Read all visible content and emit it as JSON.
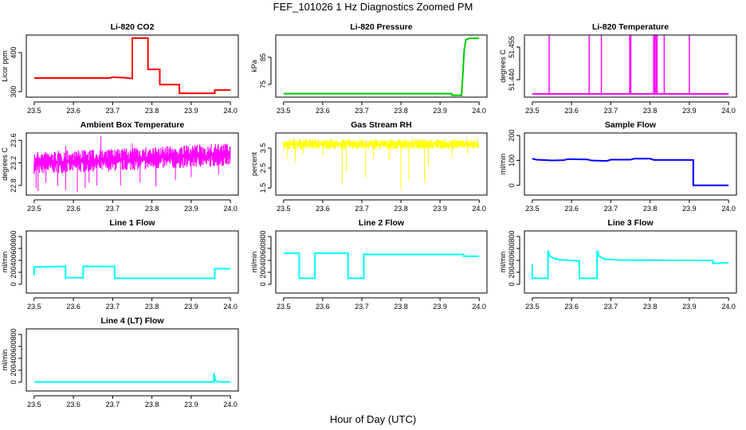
{
  "chart_data": {
    "type": "line",
    "title": "FEF_101026  1 Hz Diagnostics Zoomed PM",
    "xlabel": "Hour of Day (UTC)",
    "xlim": [
      23.48,
      24.02
    ],
    "xticks": [
      "23.5",
      "23.6",
      "23.7",
      "23.8",
      "23.9",
      "24.0"
    ],
    "panels": [
      {
        "title": "Li-820 CO2",
        "ylabel": "Licor ppm",
        "ylim": [
          286,
          445
        ],
        "yticks": [
          300,
          400
        ],
        "ytick_labels": [
          "300",
          "400"
        ],
        "color": "#ff0000",
        "lines": [
          [
            [
              23.5,
              335
            ],
            [
              23.6,
              335
            ],
            [
              23.69,
              335
            ],
            [
              23.7,
              337
            ],
            [
              23.73,
              336
            ],
            [
              23.745,
              334
            ],
            [
              23.75,
              334
            ],
            [
              23.75,
              437
            ],
            [
              23.79,
              437
            ],
            [
              23.79,
              357
            ],
            [
              23.82,
              357
            ],
            [
              23.82,
              318
            ],
            [
              23.87,
              318
            ],
            [
              23.87,
              296
            ],
            [
              23.96,
              296
            ],
            [
              23.96,
              304
            ],
            [
              24.0,
              304
            ]
          ]
        ]
      },
      {
        "title": "Li-820 Pressure",
        "ylabel": "kPa",
        "ylim": [
          70.3,
          93.2
        ],
        "yticks": [
          75,
          85
        ],
        "ytick_labels": [
          "75",
          "85"
        ],
        "color": "#00cc00",
        "lines": [
          [
            [
              23.5,
              71.6
            ],
            [
              23.93,
              71.6
            ],
            [
              23.93,
              71.0
            ],
            [
              23.955,
              71.0
            ],
            [
              23.958,
              78
            ],
            [
              23.962,
              88
            ],
            [
              23.966,
              91.5
            ],
            [
              23.975,
              92
            ],
            [
              24.0,
              92
            ]
          ]
        ]
      },
      {
        "title": "Li-820 Temperature",
        "ylabel": "degrees C",
        "ylim": [
          51.432,
          51.4605
        ],
        "yticks": [
          51.44,
          51.455
        ],
        "ytick_labels": [
          "51.440",
          "51.455"
        ],
        "color": "#ff00ff",
        "lines": [
          [
            [
              23.5,
              51.4335
            ],
            [
              24.0,
              51.4335
            ]
          ]
        ],
        "spikes": {
          "x": [
            23.543,
            23.645,
            23.676,
            23.748,
            23.751,
            23.809,
            23.812,
            23.815,
            23.818,
            23.836,
            23.9
          ],
          "base": 51.4335,
          "top": 51.4605
        }
      },
      {
        "title": "Ambient Box Temperature",
        "ylabel": "degrees C",
        "ylim": [
          22.63,
          23.73
        ],
        "yticks": [
          22.8,
          23.2,
          23.6
        ],
        "ytick_labels": [
          "22.8",
          "23.2",
          "23.6"
        ],
        "color": "#ff00ff",
        "band": {
          "x": [
            23.5,
            23.7,
            23.85,
            24.0
          ],
          "lo": [
            23.0,
            23.05,
            23.1,
            23.15
          ],
          "hi": [
            23.4,
            23.45,
            23.5,
            23.55
          ]
        },
        "spikes_down": {
          "x": [
            23.505,
            23.51,
            23.53,
            23.56,
            23.58,
            23.61,
            23.63,
            23.64,
            23.66,
            23.72,
            23.77,
            23.81,
            23.86,
            23.9,
            23.97
          ],
          "y": [
            22.75,
            22.7,
            22.85,
            22.8,
            22.72,
            22.68,
            22.75,
            22.85,
            22.8,
            22.8,
            22.85,
            22.78,
            22.9,
            22.95,
            23.0
          ]
        },
        "spikes_up": {
          "x": [
            23.67,
            23.58,
            23.75
          ],
          "y": [
            23.68,
            23.5,
            23.55
          ]
        }
      },
      {
        "title": "Gas Stream RH",
        "ylabel": "percent",
        "ylim": [
          1.14,
          4.26
        ],
        "yticks": [
          1.5,
          2.5,
          3.5
        ],
        "ytick_labels": [
          "1.5",
          "2.5",
          "3.5"
        ],
        "color": "#ffff00",
        "band": {
          "x": [
            23.5,
            24.0
          ],
          "lo": [
            3.45,
            3.45
          ],
          "hi": [
            3.95,
            3.95
          ]
        },
        "spikes_down": {
          "x": [
            23.51,
            23.53,
            23.55,
            23.6,
            23.65,
            23.66,
            23.71,
            23.73,
            23.77,
            23.8,
            23.82,
            23.86,
            23.87,
            23.93,
            23.97
          ],
          "y": [
            3.0,
            2.8,
            3.2,
            3.1,
            1.7,
            2.3,
            2.0,
            3.0,
            2.9,
            1.4,
            1.9,
            1.8,
            2.6,
            3.0,
            3.2
          ]
        }
      },
      {
        "title": "Sample Flow",
        "ylabel": "ml/min",
        "ylim": [
          -39,
          210
        ],
        "yticks": [
          0,
          100,
          200
        ],
        "ytick_labels": [
          "0",
          "100",
          "200"
        ],
        "color": "#0000ff",
        "lines": [
          [
            [
              23.5,
              107
            ],
            [
              23.51,
              103
            ],
            [
              23.55,
              100
            ],
            [
              23.58,
              101
            ],
            [
              23.59,
              105
            ],
            [
              23.64,
              104
            ],
            [
              23.65,
              100
            ],
            [
              23.69,
              98
            ],
            [
              23.7,
              103
            ],
            [
              23.75,
              103
            ],
            [
              23.76,
              107
            ],
            [
              23.8,
              107
            ],
            [
              23.81,
              102
            ],
            [
              23.91,
              102
            ],
            [
              23.91,
              0
            ],
            [
              23.93,
              0
            ],
            [
              24.0,
              0
            ]
          ]
        ]
      },
      {
        "title": "Line 1 Flow",
        "ylabel": "ml/min",
        "ylim": [
          -147,
          893
        ],
        "yticks": [
          0,
          200,
          400,
          600,
          800
        ],
        "ytick_labels": [
          "0",
          "200",
          "400",
          "600",
          "800"
        ],
        "color": "#00ffff",
        "lines": [
          [
            [
              23.5,
              150
            ],
            [
              23.5,
              290
            ],
            [
              23.58,
              300
            ],
            [
              23.58,
              110
            ],
            [
              23.625,
              110
            ],
            [
              23.625,
              300
            ],
            [
              23.705,
              300
            ],
            [
              23.705,
              100
            ],
            [
              23.96,
              100
            ],
            [
              23.96,
              260
            ],
            [
              24.0,
              260
            ]
          ]
        ]
      },
      {
        "title": "Line 2 Flow",
        "ylabel": "ml/min",
        "ylim": [
          -147,
          893
        ],
        "yticks": [
          0,
          200,
          400,
          600,
          800
        ],
        "ytick_labels": [
          "0",
          "200",
          "400",
          "600",
          "800"
        ],
        "color": "#00ffff",
        "lines": [
          [
            [
              23.5,
              520
            ],
            [
              23.54,
              520
            ],
            [
              23.54,
              100
            ],
            [
              23.58,
              100
            ],
            [
              23.58,
              520
            ],
            [
              23.665,
              520
            ],
            [
              23.665,
              100
            ],
            [
              23.705,
              100
            ],
            [
              23.705,
              500
            ],
            [
              23.96,
              500
            ],
            [
              23.96,
              470
            ],
            [
              24.0,
              470
            ]
          ]
        ]
      },
      {
        "title": "Line 3 Flow",
        "ylabel": "ml/min",
        "ylim": [
          -147,
          893
        ],
        "yticks": [
          0,
          200,
          400,
          600,
          800
        ],
        "ytick_labels": [
          "0",
          "200",
          "400",
          "600",
          "800"
        ],
        "color": "#00ffff",
        "lines": [
          [
            [
              23.5,
              340
            ],
            [
              23.5,
              100
            ],
            [
              23.54,
              100
            ],
            [
              23.54,
              560
            ],
            [
              23.545,
              470
            ],
            [
              23.555,
              430
            ],
            [
              23.57,
              410
            ],
            [
              23.6,
              400
            ],
            [
              23.62,
              390
            ],
            [
              23.62,
              100
            ],
            [
              23.665,
              100
            ],
            [
              23.665,
              560
            ],
            [
              23.67,
              470
            ],
            [
              23.685,
              420
            ],
            [
              23.72,
              405
            ],
            [
              23.96,
              400
            ],
            [
              23.96,
              350
            ],
            [
              24.0,
              360
            ]
          ]
        ]
      },
      {
        "title": "Line 4 (LT) Flow",
        "ylabel": "ml/min",
        "ylim": [
          -147,
          893
        ],
        "yticks": [
          0,
          200,
          400,
          600,
          800
        ],
        "ytick_labels": [
          "0",
          "200",
          "400",
          "600",
          "800"
        ],
        "color": "#00ffff",
        "lines": [
          [
            [
              23.5,
              5
            ],
            [
              23.958,
              5
            ],
            [
              23.958,
              150
            ],
            [
              23.962,
              20
            ],
            [
              23.97,
              5
            ],
            [
              24.0,
              5
            ]
          ]
        ]
      }
    ]
  }
}
